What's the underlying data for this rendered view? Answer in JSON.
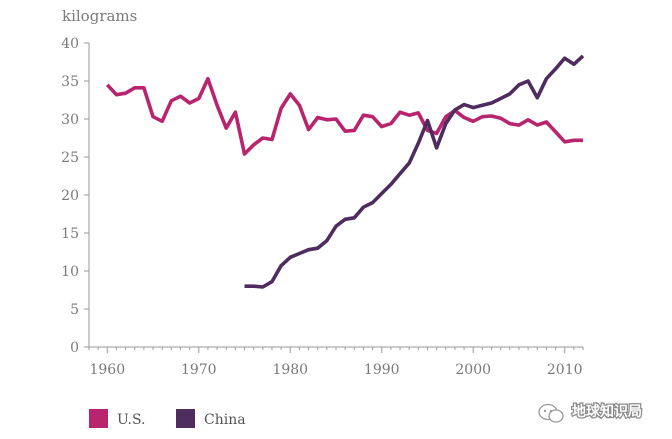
{
  "chart_data": {
    "type": "line",
    "ylabel": "kilograms",
    "xlabel": "",
    "ylim": [
      0,
      40
    ],
    "xlim": [
      1958,
      2012
    ],
    "yticks": [
      0,
      5,
      10,
      15,
      20,
      25,
      30,
      35,
      40
    ],
    "xticks": [
      1960,
      1970,
      1980,
      1990,
      2000,
      2010
    ],
    "grid": false,
    "legend_position": "bottom-left",
    "series": [
      {
        "name": "U.S.",
        "color": "#b8256e",
        "x": [
          1960,
          1961,
          1962,
          1963,
          1964,
          1965,
          1966,
          1967,
          1968,
          1969,
          1970,
          1971,
          1972,
          1973,
          1974,
          1975,
          1976,
          1977,
          1978,
          1979,
          1980,
          1981,
          1982,
          1983,
          1984,
          1985,
          1986,
          1987,
          1988,
          1989,
          1990,
          1991,
          1992,
          1993,
          1994,
          1995,
          1996,
          1997,
          1998,
          1999,
          2000,
          2001,
          2002,
          2003,
          2004,
          2005,
          2006,
          2007,
          2008,
          2009,
          2010,
          2011,
          2012
        ],
        "values": [
          34.5,
          33.2,
          33.4,
          34.1,
          34.1,
          30.3,
          29.7,
          32.4,
          33.0,
          32.1,
          32.7,
          35.3,
          31.8,
          28.8,
          30.9,
          25.4,
          26.6,
          27.5,
          27.3,
          31.4,
          33.3,
          31.8,
          28.6,
          30.2,
          29.9,
          30.0,
          28.4,
          28.5,
          30.5,
          30.3,
          29.0,
          29.4,
          30.9,
          30.5,
          30.8,
          28.5,
          28.1,
          30.3,
          31.1,
          30.2,
          29.7,
          30.3,
          30.4,
          30.1,
          29.4,
          29.2,
          29.9,
          29.2,
          29.6,
          28.3,
          27.0,
          27.2,
          27.2
        ]
      },
      {
        "name": "China",
        "color": "#4e2c5e",
        "x": [
          1975,
          1976,
          1977,
          1978,
          1979,
          1980,
          1981,
          1982,
          1983,
          1984,
          1985,
          1986,
          1987,
          1988,
          1989,
          1990,
          1991,
          1992,
          1993,
          1994,
          1995,
          1996,
          1997,
          1998,
          1999,
          2000,
          2001,
          2002,
          2003,
          2004,
          2005,
          2006,
          2007,
          2008,
          2009,
          2010,
          2011,
          2012
        ],
        "values": [
          8.0,
          8.0,
          7.9,
          8.6,
          10.7,
          11.8,
          12.3,
          12.8,
          13.0,
          14.0,
          15.9,
          16.8,
          17.0,
          18.4,
          19.0,
          20.2,
          21.4,
          22.8,
          24.2,
          26.8,
          29.8,
          26.2,
          29.4,
          31.2,
          31.9,
          31.5,
          31.8,
          32.1,
          32.7,
          33.3,
          34.5,
          35.0,
          32.8,
          35.3,
          36.6,
          38.0,
          37.2,
          38.3
        ]
      }
    ]
  },
  "watermark": {
    "text": "地球知识局",
    "icon": "wechat-icon"
  }
}
